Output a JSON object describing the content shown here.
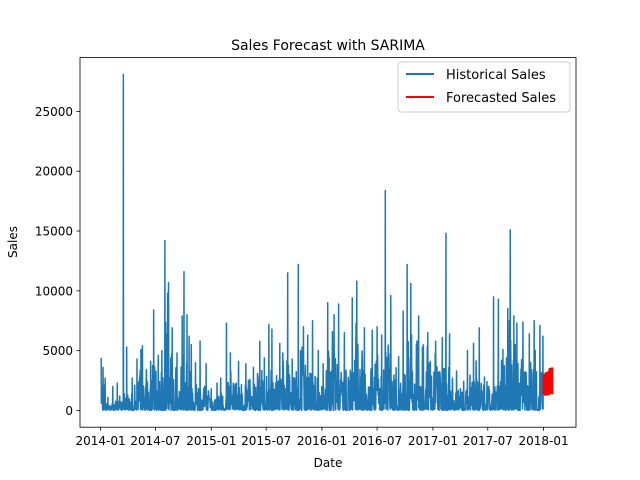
{
  "chart_data": {
    "type": "line",
    "title": "Sales Forecast with SARIMA",
    "xlabel": "Date",
    "ylabel": "Sales",
    "xlim": [
      "2013-10-25",
      "2018-04-18"
    ],
    "ylim": [
      -1400,
      29500
    ],
    "x_ticks": [
      "2014-01",
      "2014-07",
      "2015-01",
      "2015-07",
      "2016-01",
      "2016-07",
      "2017-01",
      "2017-07",
      "2018-01"
    ],
    "y_ticks": [
      0,
      5000,
      10000,
      15000,
      20000,
      25000
    ],
    "grid": false,
    "legend": "top-right",
    "series": [
      {
        "name": "Historical Sales",
        "color": "#1f77b4",
        "points": [
          [
            "2014-01-03",
            4400
          ],
          [
            "2014-01-09",
            3600
          ],
          [
            "2014-01-16",
            2700
          ],
          [
            "2014-01-25",
            1100
          ],
          [
            "2014-02-10",
            2000
          ],
          [
            "2014-02-25",
            2300
          ],
          [
            "2014-03-05",
            1200
          ],
          [
            "2014-03-10",
            700
          ],
          [
            "2014-03-17",
            28100
          ],
          [
            "2014-03-20",
            1400
          ],
          [
            "2014-03-28",
            5300
          ],
          [
            "2014-04-15",
            2700
          ],
          [
            "2014-05-01",
            4300
          ],
          [
            "2014-05-14",
            5100
          ],
          [
            "2014-05-19",
            5400
          ],
          [
            "2014-06-01",
            3400
          ],
          [
            "2014-06-15",
            4100
          ],
          [
            "2014-06-25",
            8400
          ],
          [
            "2014-07-10",
            4600
          ],
          [
            "2014-07-22",
            5000
          ],
          [
            "2014-08-01",
            14200
          ],
          [
            "2014-08-10",
            9800
          ],
          [
            "2014-08-13",
            10700
          ],
          [
            "2014-08-25",
            6900
          ],
          [
            "2014-09-10",
            4800
          ],
          [
            "2014-09-27",
            7900
          ],
          [
            "2014-10-03",
            11600
          ],
          [
            "2014-10-13",
            8000
          ],
          [
            "2014-10-20",
            6200
          ],
          [
            "2014-10-27",
            5500
          ],
          [
            "2014-11-10",
            4000
          ],
          [
            "2014-11-25",
            5800
          ],
          [
            "2014-12-15",
            3900
          ],
          [
            "2015-01-01",
            1800
          ],
          [
            "2015-01-20",
            2300
          ],
          [
            "2015-02-01",
            2700
          ],
          [
            "2015-02-20",
            7300
          ],
          [
            "2015-03-05",
            4800
          ],
          [
            "2015-04-01",
            4100
          ],
          [
            "2015-04-25",
            3900
          ],
          [
            "2015-05-20",
            3600
          ],
          [
            "2015-06-10",
            5800
          ],
          [
            "2015-06-25",
            4400
          ],
          [
            "2015-07-10",
            7200
          ],
          [
            "2015-07-20",
            6800
          ],
          [
            "2015-08-15",
            5600
          ],
          [
            "2015-08-25",
            4800
          ],
          [
            "2015-09-10",
            11500
          ],
          [
            "2015-09-25",
            4300
          ],
          [
            "2015-10-15",
            12200
          ],
          [
            "2015-11-01",
            7000
          ],
          [
            "2015-11-15",
            6300
          ],
          [
            "2015-12-01",
            7500
          ],
          [
            "2015-12-20",
            5000
          ],
          [
            "2016-01-05",
            3900
          ],
          [
            "2016-01-20",
            9000
          ],
          [
            "2016-02-10",
            8000
          ],
          [
            "2016-02-25",
            8900
          ],
          [
            "2016-03-15",
            6500
          ],
          [
            "2016-04-10",
            9400
          ],
          [
            "2016-04-25",
            10800
          ],
          [
            "2016-05-20",
            6900
          ],
          [
            "2016-06-15",
            6700
          ],
          [
            "2016-07-01",
            7000
          ],
          [
            "2016-07-16",
            6300
          ],
          [
            "2016-07-28",
            18400
          ],
          [
            "2016-08-15",
            9600
          ],
          [
            "2016-09-10",
            4500
          ],
          [
            "2016-09-25",
            8300
          ],
          [
            "2016-10-08",
            12200
          ],
          [
            "2016-10-20",
            10600
          ],
          [
            "2016-11-15",
            7900
          ],
          [
            "2016-12-15",
            6500
          ],
          [
            "2017-01-10",
            5800
          ],
          [
            "2017-02-01",
            6100
          ],
          [
            "2017-02-13",
            14800
          ],
          [
            "2017-02-25",
            6400
          ],
          [
            "2017-03-20",
            3300
          ],
          [
            "2017-04-25",
            5000
          ],
          [
            "2017-05-15",
            5600
          ],
          [
            "2017-06-03",
            6900
          ],
          [
            "2017-06-20",
            2800
          ],
          [
            "2017-07-20",
            9500
          ],
          [
            "2017-08-05",
            9300
          ],
          [
            "2017-08-20",
            5100
          ],
          [
            "2017-09-05",
            8500
          ],
          [
            "2017-09-13",
            15100
          ],
          [
            "2017-09-25",
            7900
          ],
          [
            "2017-10-05",
            7300
          ],
          [
            "2017-10-25",
            7400
          ],
          [
            "2017-11-15",
            6400
          ],
          [
            "2017-12-01",
            7500
          ],
          [
            "2017-12-20",
            7100
          ],
          [
            "2017-12-30",
            6200
          ]
        ]
      },
      {
        "name": "Forecasted Sales",
        "color": "#ff0000",
        "start": "2017-12-31",
        "end": "2018-01-31",
        "low": 1200,
        "high": 3800,
        "trend_low": [
          1200,
          1300
        ],
        "trend_high": [
          3000,
          3800
        ]
      }
    ]
  }
}
